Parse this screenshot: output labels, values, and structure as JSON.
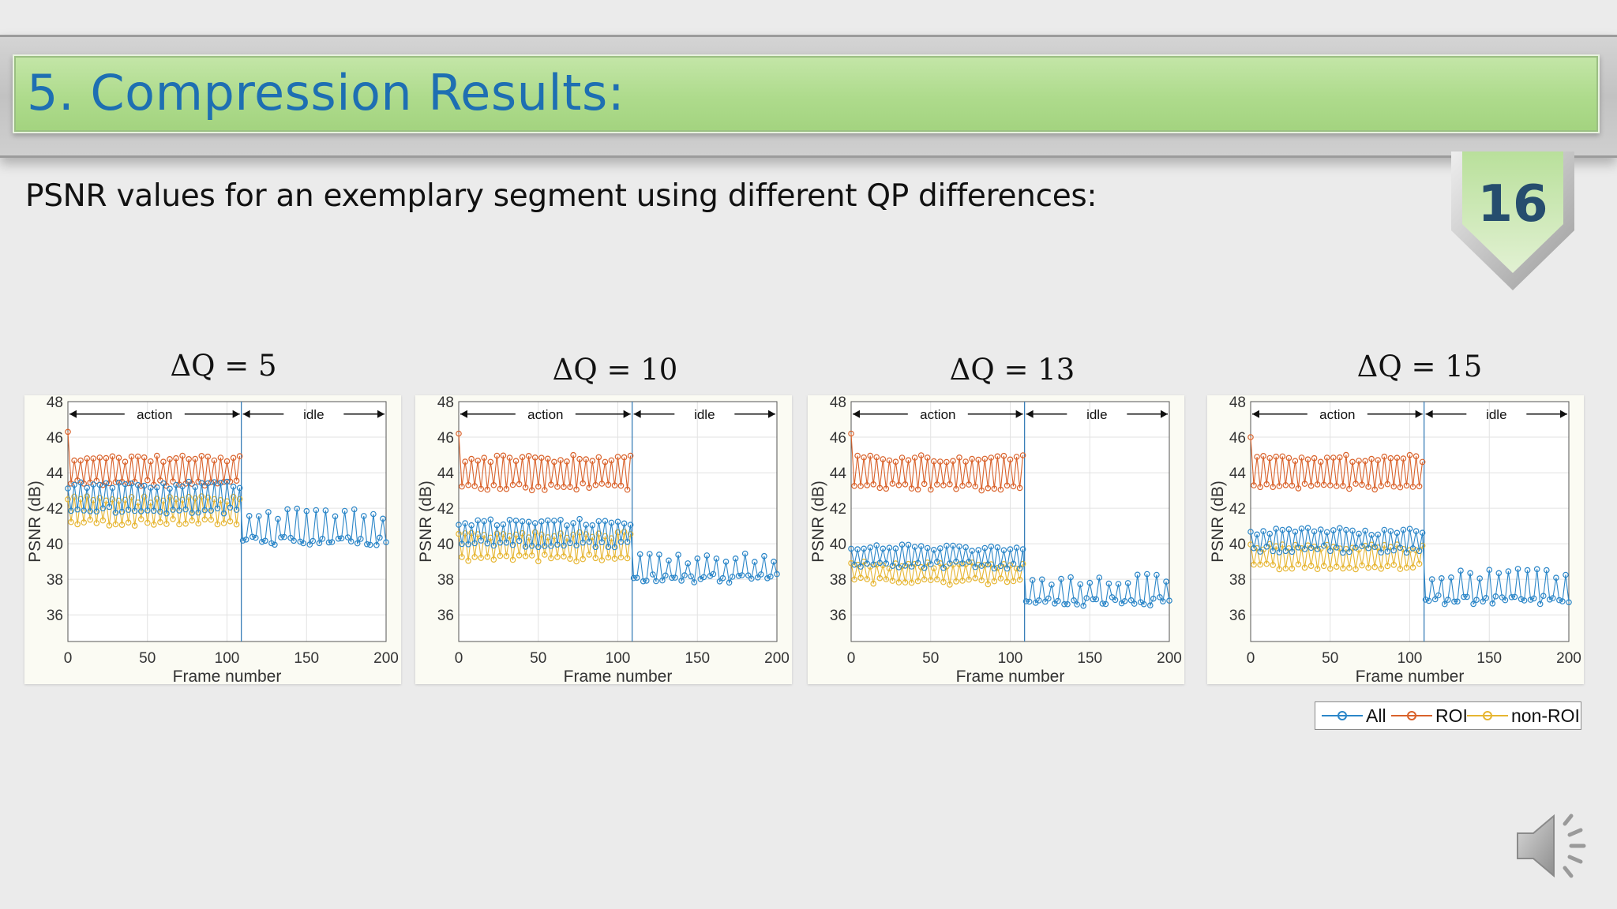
{
  "slide": {
    "title": "5. Compression Results:",
    "number": "16",
    "subtitle": "PSNR values for an exemplary segment using different QP differences:",
    "speaker_icon": "speaker-icon"
  },
  "colors": {
    "title_text": "#1e6fb2",
    "title_band": "#aedb8c",
    "All": "#2b86c8",
    "ROI": "#d9622b",
    "non-ROI": "#e6b531"
  },
  "legend": [
    "All",
    "ROI",
    "non-ROI"
  ],
  "chart_data": [
    {
      "type": "line",
      "title": "ΔQ = 5",
      "xlabel": "Frame number",
      "ylabel": "PSNR (dB)",
      "xlim": [
        0,
        200
      ],
      "ylim": [
        34.5,
        48
      ],
      "xticks": [
        0,
        50,
        100,
        150,
        200
      ],
      "yticks": [
        36,
        38,
        40,
        42,
        44,
        46,
        48
      ],
      "grid": true,
      "segment_boundary": 109,
      "annotations": [
        "action",
        "idle"
      ],
      "series_summary": [
        {
          "name": "All",
          "action_low": 41.7,
          "action_high": 43.5,
          "idle_low": 39.9,
          "idle_high": 42.0,
          "idle_frames": [
            109,
            200
          ]
        },
        {
          "name": "ROI",
          "action_low": 43.2,
          "action_high": 45.0,
          "first": 46.3
        },
        {
          "name": "non-ROI",
          "action_low": 41.0,
          "action_high": 42.7
        }
      ]
    },
    {
      "type": "line",
      "title": "ΔQ = 10",
      "xlabel": "Frame number",
      "ylabel": "PSNR (dB)",
      "xlim": [
        0,
        200
      ],
      "ylim": [
        34.5,
        48
      ],
      "xticks": [
        0,
        50,
        100,
        150,
        200
      ],
      "yticks": [
        36,
        38,
        40,
        42,
        44,
        46,
        48
      ],
      "grid": true,
      "segment_boundary": 109,
      "annotations": [
        "action",
        "idle"
      ],
      "series_summary": [
        {
          "name": "All",
          "action_low": 39.8,
          "action_high": 41.4,
          "idle_low": 37.8,
          "idle_high": 39.5,
          "idle_frames": [
            109,
            200
          ]
        },
        {
          "name": "ROI",
          "action_low": 43.0,
          "action_high": 45.0,
          "first": 46.2
        },
        {
          "name": "non-ROI",
          "action_low": 39.0,
          "action_high": 40.7
        }
      ]
    },
    {
      "type": "line",
      "title": "ΔQ = 13",
      "xlabel": "Frame number",
      "ylabel": "PSNR (dB)",
      "xlim": [
        0,
        200
      ],
      "ylim": [
        34.5,
        48
      ],
      "xticks": [
        0,
        50,
        100,
        150,
        200
      ],
      "yticks": [
        36,
        38,
        40,
        42,
        44,
        46,
        48
      ],
      "grid": true,
      "segment_boundary": 109,
      "annotations": [
        "action",
        "idle"
      ],
      "series_summary": [
        {
          "name": "All",
          "action_low": 38.6,
          "action_high": 40.0,
          "idle_low": 36.5,
          "idle_high": 38.3,
          "idle_frames": [
            109,
            200
          ]
        },
        {
          "name": "ROI",
          "action_low": 43.0,
          "action_high": 45.0,
          "first": 46.2
        },
        {
          "name": "non-ROI",
          "action_low": 37.7,
          "action_high": 39.0
        }
      ]
    },
    {
      "type": "line",
      "title": "ΔQ = 15",
      "xlabel": "Frame number",
      "ylabel": "PSNR (dB)",
      "xlim": [
        0,
        200
      ],
      "ylim": [
        34.5,
        48
      ],
      "xticks": [
        0,
        50,
        100,
        150,
        200
      ],
      "yticks": [
        36,
        38,
        40,
        42,
        44,
        46,
        48
      ],
      "grid": true,
      "segment_boundary": 109,
      "annotations": [
        "action",
        "idle"
      ],
      "series_summary": [
        {
          "name": "All",
          "action_low": 39.5,
          "action_high": 40.9,
          "idle_low": 36.6,
          "idle_high": 38.6,
          "idle_frames": [
            109,
            200
          ]
        },
        {
          "name": "ROI",
          "action_low": 43.0,
          "action_high": 45.0,
          "first": 46.0
        },
        {
          "name": "non-ROI",
          "action_low": 38.5,
          "action_high": 40.0
        }
      ]
    }
  ]
}
